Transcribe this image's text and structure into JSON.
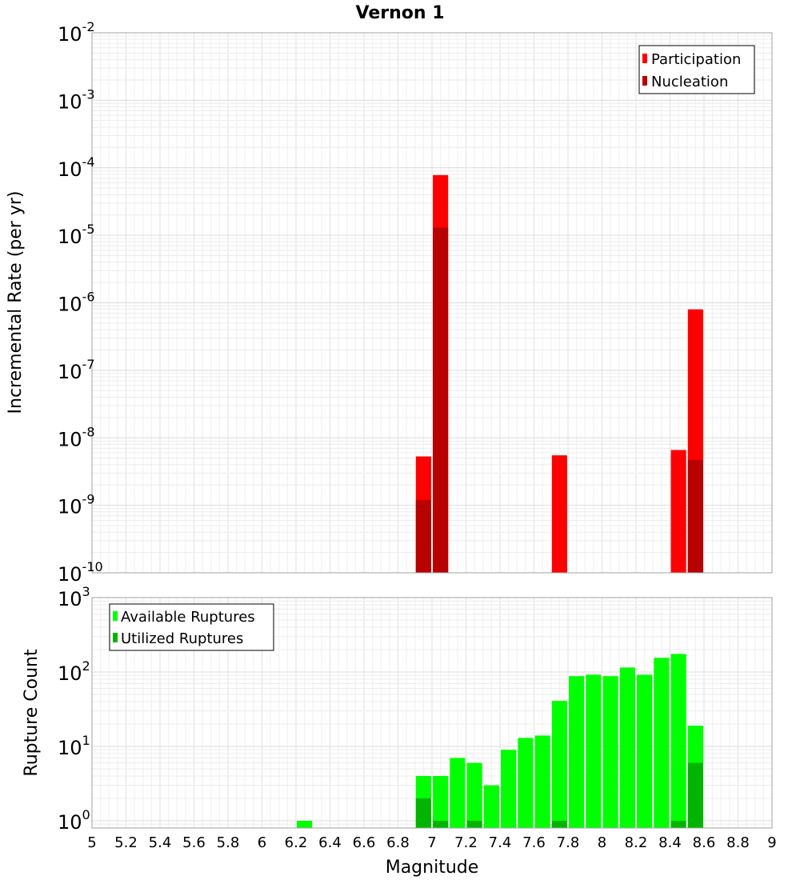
{
  "chart_data": {
    "title": "Vernon 1",
    "x_axis": {
      "label": "Magnitude",
      "range": [
        5,
        9
      ],
      "ticks": [
        "5",
        "5.2",
        "5.4",
        "5.6",
        "5.8",
        "6",
        "6.2",
        "6.4",
        "6.6",
        "6.8",
        "7",
        "7.2",
        "7.4",
        "7.6",
        "7.8",
        "8",
        "8.2",
        "8.4",
        "8.6",
        "8.8",
        "9"
      ]
    },
    "panels": [
      {
        "type": "bar",
        "ylabel": "Incremental Rate (per yr)",
        "yscale": "log",
        "ylim": [
          1e-10,
          0.01
        ],
        "ytick_exponents": [
          "-10",
          "-9",
          "-8",
          "-7",
          "-6",
          "-5",
          "-4",
          "-3",
          "-2"
        ],
        "legend_position": "top-right",
        "series": [
          {
            "name": "Participation",
            "color": "#ff0000",
            "points": [
              [
                6.95,
                5.3e-09
              ],
              [
                7.05,
                7.8e-05
              ],
              [
                7.75,
                5.5e-09
              ],
              [
                8.45,
                6.6e-09
              ],
              [
                8.55,
                8e-07
              ]
            ]
          },
          {
            "name": "Nucleation",
            "color": "#b80000",
            "points": [
              [
                6.95,
                1.2e-09
              ],
              [
                7.05,
                1.3e-05
              ],
              [
                8.55,
                4.7e-09
              ]
            ]
          }
        ]
      },
      {
        "type": "bar",
        "ylabel": "Rupture Count",
        "yscale": "log",
        "ylim": [
          0.8,
          1000
        ],
        "ytick_exponents": [
          "0",
          "1",
          "2",
          "3"
        ],
        "legend_position": "top-left",
        "series": [
          {
            "name": "Available Ruptures",
            "color": "#00ff00",
            "points": [
              [
                6.25,
                1
              ],
              [
                6.95,
                4
              ],
              [
                7.05,
                4
              ],
              [
                7.15,
                7
              ],
              [
                7.25,
                6
              ],
              [
                7.35,
                3
              ],
              [
                7.45,
                9
              ],
              [
                7.55,
                13
              ],
              [
                7.65,
                14
              ],
              [
                7.75,
                41
              ],
              [
                7.85,
                88
              ],
              [
                7.95,
                92
              ],
              [
                8.05,
                88
              ],
              [
                8.15,
                115
              ],
              [
                8.25,
                92
              ],
              [
                8.35,
                155
              ],
              [
                8.45,
                175
              ],
              [
                8.55,
                19
              ]
            ]
          },
          {
            "name": "Utilized Ruptures",
            "color": "#00b400",
            "points": [
              [
                6.95,
                2
              ],
              [
                7.05,
                1
              ],
              [
                7.25,
                1
              ],
              [
                7.75,
                1
              ],
              [
                8.45,
                1
              ],
              [
                8.55,
                6
              ]
            ]
          }
        ]
      }
    ]
  }
}
